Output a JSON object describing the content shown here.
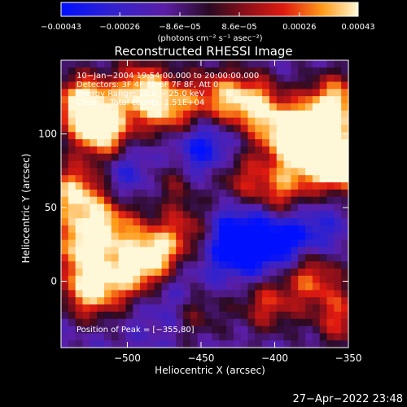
{
  "chart_data": {
    "type": "heatmap",
    "title": "Reconstructed RHESSI Image",
    "xlabel": "Heliocentric X (arcsec)",
    "ylabel": "Heliocentric Y (arcsec)",
    "xlim": [
      -545,
      -350
    ],
    "ylim": [
      -45,
      150
    ],
    "x_ticks": [
      -500,
      -450,
      -400,
      -350
    ],
    "y_ticks": [
      0,
      50,
      100
    ],
    "x_tick_labels": [
      "−500",
      "−450",
      "−400",
      "−350"
    ],
    "y_tick_labels": [
      "0",
      "50",
      "100"
    ],
    "colorbar": {
      "min": -0.00043,
      "max": 0.00043,
      "tick_values": [
        -0.00043,
        -0.00026,
        -8.6e-05,
        8.6e-05,
        0.00026,
        0.00043
      ],
      "tick_labels": [
        "−0.00043",
        "−0.00026",
        "−8.6e−05",
        "8.6e−05",
        "0.00026",
        "0.00043"
      ],
      "unit_label": "(photons cm⁻² s⁻¹ asec⁻²)"
    },
    "annotations": [
      "10−Jan−2004 19:54:00.000 to 20:00:00.000",
      "Detectors: 3F 4F 5F 6F 7F 8F, Att 0",
      "Energy Range: 12.0 − 25.0 keV",
      "Clean    Total counts: 1.51E+04"
    ],
    "peak_label": "Position of Peak = [−355,80]",
    "peak": [
      -355,
      80
    ],
    "grid_size": [
      40,
      40
    ],
    "hot_spots": [
      {
        "x": -530,
        "y": 120,
        "amp": 1.0
      },
      {
        "x": -515,
        "y": 100,
        "amp": 0.9
      },
      {
        "x": -490,
        "y": 130,
        "amp": 0.8
      },
      {
        "x": -470,
        "y": 115,
        "amp": 0.7
      },
      {
        "x": -440,
        "y": 125,
        "amp": 0.6
      },
      {
        "x": -415,
        "y": 120,
        "amp": 0.8
      },
      {
        "x": -390,
        "y": 100,
        "amp": 0.9
      },
      {
        "x": -372,
        "y": 90,
        "amp": 0.95
      },
      {
        "x": -355,
        "y": 80,
        "amp": 1.0
      },
      {
        "x": -360,
        "y": 120,
        "amp": 0.9
      },
      {
        "x": -395,
        "y": 60,
        "amp": 0.65
      },
      {
        "x": -535,
        "y": 60,
        "amp": 0.85
      },
      {
        "x": -530,
        "y": 25,
        "amp": 0.8
      },
      {
        "x": -525,
        "y": -5,
        "amp": 0.9
      },
      {
        "x": -510,
        "y": 40,
        "amp": 0.6
      },
      {
        "x": -495,
        "y": 5,
        "amp": 0.7
      },
      {
        "x": -480,
        "y": 20,
        "amp": 0.75
      },
      {
        "x": -455,
        "y": 35,
        "amp": 0.55
      },
      {
        "x": -425,
        "y": 70,
        "amp": 0.5
      },
      {
        "x": -470,
        "y": 70,
        "amp": 0.45
      },
      {
        "x": -405,
        "y": -15,
        "amp": 0.55
      },
      {
        "x": -375,
        "y": 5,
        "amp": 0.7
      },
      {
        "x": -355,
        "y": -25,
        "amp": 0.55
      },
      {
        "x": -455,
        "y": -20,
        "amp": 0.45
      }
    ],
    "cold_spots": [
      {
        "x": -450,
        "y": 90,
        "amp": 0.9
      },
      {
        "x": -435,
        "y": 30,
        "amp": 0.8
      },
      {
        "x": -410,
        "y": 25,
        "amp": 0.85
      },
      {
        "x": -500,
        "y": 75,
        "amp": 0.6
      },
      {
        "x": -470,
        "y": -10,
        "amp": 0.6
      },
      {
        "x": -380,
        "y": 30,
        "amp": 0.7
      }
    ]
  },
  "footer": {
    "timestamp": "27−Apr−2022 23:48"
  }
}
